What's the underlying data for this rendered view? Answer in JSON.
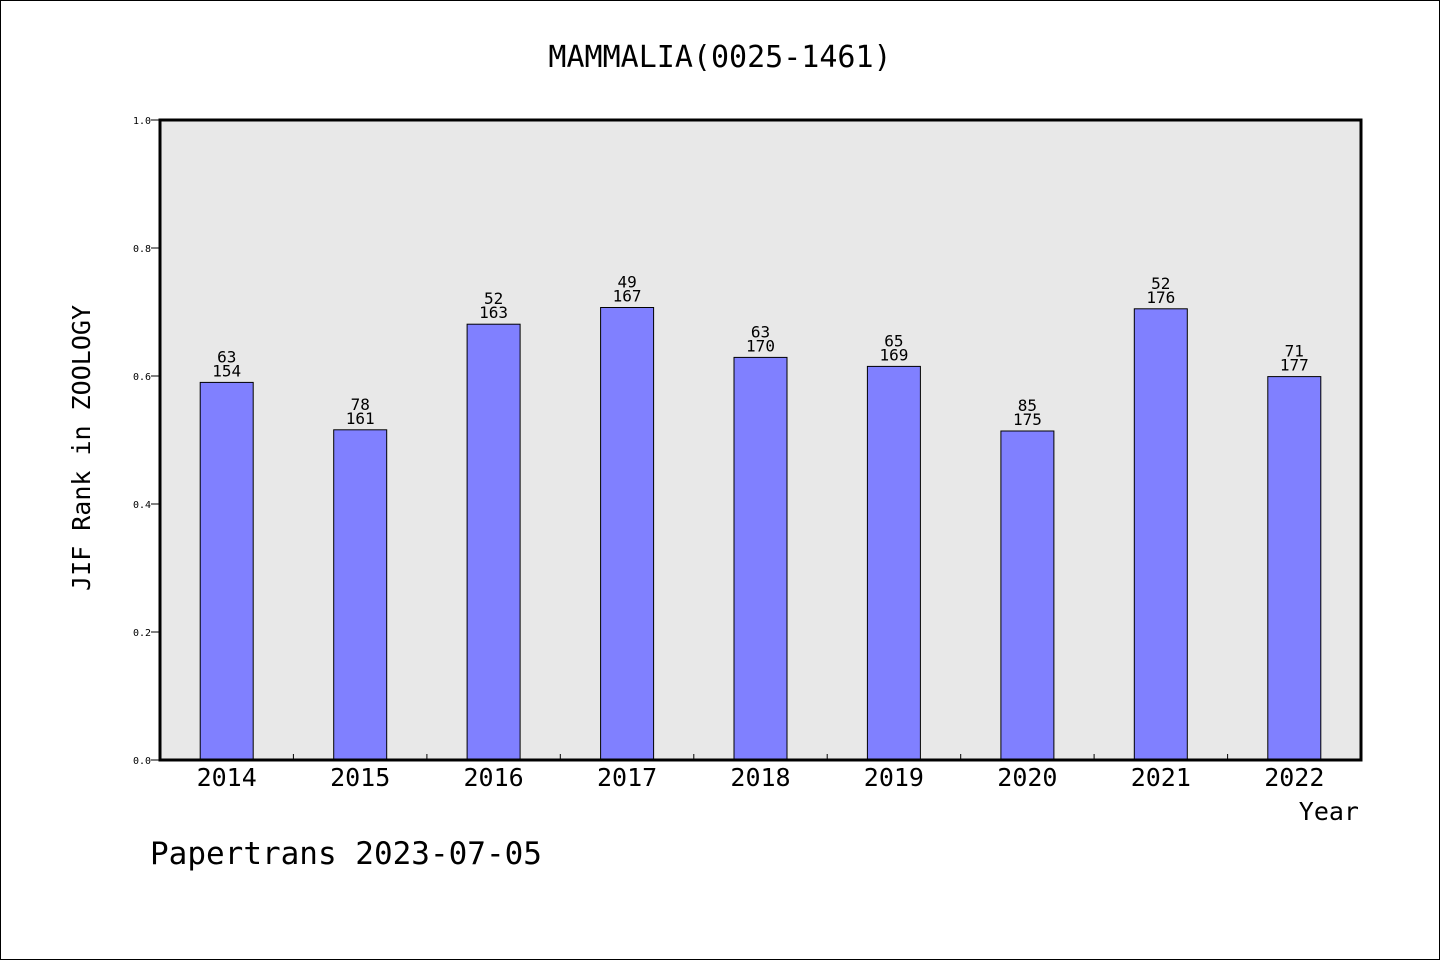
{
  "chart_data": {
    "type": "bar",
    "title": "MAMMALIA(0025-1461)",
    "xlabel": "Year",
    "ylabel": "JIF Rank in ZOOLOGY",
    "ylim": [
      0,
      1.0
    ],
    "yticks": [
      "0.0",
      "0.2",
      "0.4",
      "0.6",
      "0.8",
      "1.0"
    ],
    "categories": [
      "2014",
      "2015",
      "2016",
      "2017",
      "2018",
      "2019",
      "2020",
      "2021",
      "2022"
    ],
    "values": [
      0.59,
      0.516,
      0.681,
      0.707,
      0.629,
      0.615,
      0.514,
      0.705,
      0.599
    ],
    "rank": [
      "63",
      "78",
      "52",
      "49",
      "63",
      "65",
      "85",
      "52",
      "71"
    ],
    "total": [
      "154",
      "161",
      "163",
      "167",
      "170",
      "169",
      "175",
      "176",
      "177"
    ],
    "bar_color": "#8080ff",
    "plot_bg": "#e8e8e8",
    "grid": false,
    "legend": "none"
  },
  "footer": {
    "watermark": "Papertrans 2023-07-05"
  }
}
